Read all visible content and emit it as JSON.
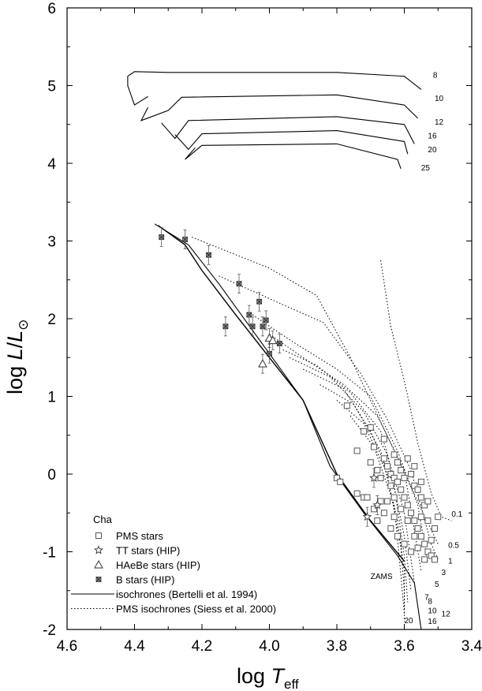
{
  "chart_data": {
    "type": "scatter",
    "xlabel": {
      "main": "log ",
      "var": "T",
      "sub": "eff"
    },
    "ylabel": {
      "main": "log ",
      "var": "L",
      "slash": "/",
      "var2": "L",
      "sun": "⊙"
    },
    "xlim": [
      4.6,
      3.4
    ],
    "ylim": [
      -2,
      6
    ],
    "x_reversed": true,
    "x_ticks": [
      "4.6",
      "4.4",
      "4.2",
      "4.0",
      "3.8",
      "3.6",
      "3.4"
    ],
    "x_tick_values": [
      4.6,
      4.4,
      4.2,
      4.0,
      3.8,
      3.6,
      3.4
    ],
    "y_ticks": [
      "-2",
      "-1",
      "0",
      "1",
      "2",
      "3",
      "4",
      "5",
      "6"
    ],
    "y_tick_values": [
      -2,
      -1,
      0,
      1,
      2,
      3,
      4,
      5,
      6
    ],
    "legend": {
      "title": "Cha",
      "entries": [
        {
          "marker": "square",
          "label": "PMS stars"
        },
        {
          "marker": "star",
          "label": "TT stars (HIP)"
        },
        {
          "marker": "triangle",
          "label": "HAeBe stars (HIP)"
        },
        {
          "marker": "xsquare",
          "label": "B stars (HIP)"
        },
        {
          "marker": "solid-line",
          "label": "isochrones (Bertelli et al. 1994)"
        },
        {
          "marker": "dotted-line",
          "label": "PMS isochrones (Siess et al. 2000)"
        }
      ]
    },
    "zams_label": "ZAMS",
    "zams": [
      [
        4.33,
        3.2
      ],
      [
        4.25,
        2.95
      ],
      [
        4.2,
        2.62
      ],
      [
        4.1,
        2.05
      ],
      [
        4.0,
        1.5
      ],
      [
        3.9,
        0.95
      ],
      [
        3.8,
        0.0
      ],
      [
        3.7,
        -0.6
      ],
      [
        3.6,
        -1.12
      ]
    ],
    "isochrones_post_ms": [
      {
        "label": "8",
        "points": [
          [
            4.34,
            3.22
          ],
          [
            4.24,
            2.95
          ],
          [
            4.15,
            2.45
          ],
          [
            4.0,
            1.55
          ],
          [
            3.9,
            0.95
          ],
          [
            3.82,
            0.1
          ],
          [
            3.72,
            -0.5
          ],
          [
            3.62,
            -1.05
          ],
          [
            3.57,
            -1.4
          ],
          [
            3.55,
            -2.0
          ]
        ]
      },
      {
        "label": "10",
        "label_xy": [
          3.53,
          4.87
        ],
        "points": [
          [
            4.36,
            4.86
          ],
          [
            4.4,
            4.75
          ],
          [
            4.42,
            5.0
          ],
          [
            4.42,
            5.12
          ],
          [
            4.4,
            5.18
          ],
          [
            4.3,
            5.17
          ],
          [
            3.8,
            5.17
          ],
          [
            3.6,
            5.12
          ],
          [
            3.55,
            4.95
          ]
        ]
      },
      {
        "label": "12",
        "points": [
          [
            4.36,
            4.72
          ],
          [
            4.38,
            4.55
          ],
          [
            4.3,
            4.68
          ],
          [
            4.26,
            4.85
          ],
          [
            3.8,
            4.88
          ],
          [
            3.6,
            4.75
          ],
          [
            3.56,
            4.58
          ]
        ]
      },
      {
        "label": "16",
        "points": [
          [
            4.32,
            4.52
          ],
          [
            4.28,
            4.32
          ],
          [
            4.24,
            4.55
          ],
          [
            3.8,
            4.6
          ],
          [
            3.6,
            4.5
          ],
          [
            3.57,
            4.25
          ]
        ]
      },
      {
        "label": "20",
        "points": [
          [
            4.28,
            4.37
          ],
          [
            4.24,
            4.18
          ],
          [
            4.2,
            4.38
          ],
          [
            3.8,
            4.42
          ],
          [
            3.6,
            4.28
          ],
          [
            3.59,
            4.12
          ]
        ]
      },
      {
        "label": "25",
        "points": [
          [
            4.22,
            4.2
          ],
          [
            4.25,
            4.05
          ],
          [
            4.2,
            4.23
          ],
          [
            3.8,
            4.25
          ],
          [
            3.62,
            4.05
          ],
          [
            3.61,
            3.93
          ]
        ]
      }
    ],
    "isochrones_pms": [
      {
        "label": "0.1",
        "points": [
          [
            3.67,
            2.75
          ],
          [
            3.64,
            1.9
          ],
          [
            3.6,
            1.2
          ],
          [
            3.56,
            0.4
          ],
          [
            3.52,
            -0.25
          ],
          [
            3.49,
            -0.55
          ],
          [
            3.46,
            -0.6
          ]
        ]
      },
      {
        "label": "0.5",
        "points": [
          [
            4.23,
            3.05
          ],
          [
            4.0,
            2.65
          ],
          [
            3.86,
            2.3
          ],
          [
            3.76,
            1.5
          ],
          [
            3.7,
            0.95
          ],
          [
            3.63,
            0.3
          ],
          [
            3.55,
            -0.45
          ],
          [
            3.5,
            -0.9
          ]
        ]
      },
      {
        "label": "1",
        "points": [
          [
            4.15,
            2.55
          ],
          [
            3.97,
            2.2
          ],
          [
            3.84,
            1.95
          ],
          [
            3.73,
            1.3
          ],
          [
            3.65,
            0.7
          ],
          [
            3.58,
            0.05
          ],
          [
            3.52,
            -0.9
          ],
          [
            3.5,
            -1.1
          ]
        ]
      },
      {
        "label": "3",
        "points": [
          [
            4.05,
            2.05
          ],
          [
            3.93,
            1.7
          ],
          [
            3.8,
            1.35
          ],
          [
            3.7,
            1.0
          ],
          [
            3.62,
            0.3
          ],
          [
            3.56,
            -0.4
          ],
          [
            3.53,
            -1.15
          ]
        ]
      },
      {
        "label": "5",
        "points": [
          [
            4.0,
            1.8
          ],
          [
            3.9,
            1.5
          ],
          [
            3.78,
            1.15
          ],
          [
            3.68,
            0.75
          ],
          [
            3.6,
            0.05
          ],
          [
            3.55,
            -1.25
          ]
        ]
      },
      {
        "label": "7",
        "points": [
          [
            3.96,
            1.6
          ],
          [
            3.86,
            1.4
          ],
          [
            3.76,
            1.05
          ],
          [
            3.67,
            0.55
          ],
          [
            3.6,
            -0.5
          ],
          [
            3.57,
            -1.4
          ]
        ]
      },
      {
        "label": "8",
        "points": [
          [
            3.94,
            1.5
          ],
          [
            3.82,
            1.25
          ],
          [
            3.72,
            0.8
          ],
          [
            3.65,
            0.25
          ],
          [
            3.6,
            -0.8
          ],
          [
            3.58,
            -1.5
          ]
        ]
      },
      {
        "label": "10",
        "points": [
          [
            3.9,
            1.35
          ],
          [
            3.78,
            1.1
          ],
          [
            3.7,
            0.55
          ],
          [
            3.63,
            -0.15
          ],
          [
            3.6,
            -1.05
          ],
          [
            3.59,
            -1.65
          ]
        ]
      },
      {
        "label": "12",
        "points": [
          [
            3.85,
            1.15
          ],
          [
            3.75,
            0.9
          ],
          [
            3.67,
            0.3
          ],
          [
            3.62,
            -0.6
          ],
          [
            3.6,
            -1.25
          ],
          [
            3.6,
            -1.75
          ]
        ]
      },
      {
        "label": "16",
        "points": [
          [
            3.8,
            0.95
          ],
          [
            3.72,
            0.65
          ],
          [
            3.65,
            0.0
          ],
          [
            3.61,
            -0.95
          ],
          [
            3.6,
            -1.5
          ],
          [
            3.6,
            -1.9
          ]
        ]
      },
      {
        "label": "20",
        "points": [
          [
            3.76,
            0.75
          ],
          [
            3.69,
            0.35
          ],
          [
            3.63,
            -0.4
          ],
          [
            3.61,
            -1.3
          ],
          [
            3.6,
            -1.8
          ]
        ]
      }
    ],
    "pms_label_positions": [
      {
        "label": "0.1",
        "x": 3.46,
        "y": -0.55
      },
      {
        "label": "0.5",
        "x": 3.47,
        "y": -0.95
      },
      {
        "label": "1",
        "x": 3.47,
        "y": -1.15
      },
      {
        "label": "3",
        "x": 3.49,
        "y": -1.3
      },
      {
        "label": "5",
        "x": 3.51,
        "y": -1.45
      },
      {
        "label": "7",
        "x": 3.54,
        "y": -1.62
      },
      {
        "label": "8",
        "x": 3.53,
        "y": -1.67
      },
      {
        "label": "10",
        "x": 3.53,
        "y": -1.79
      },
      {
        "label": "12",
        "x": 3.49,
        "y": -1.83
      },
      {
        "label": "16",
        "x": 3.53,
        "y": -1.93
      },
      {
        "label": "20",
        "x": 3.6,
        "y": -1.92
      }
    ],
    "post_ms_labels": [
      {
        "label": "8",
        "x": 3.515,
        "y": 5.1
      },
      {
        "label": "10",
        "x": 3.51,
        "y": 4.8
      },
      {
        "label": "12",
        "x": 3.51,
        "y": 4.5
      },
      {
        "label": "16",
        "x": 3.53,
        "y": 4.32
      },
      {
        "label": "20",
        "x": 3.53,
        "y": 4.14
      },
      {
        "label": "25",
        "x": 3.55,
        "y": 3.91
      }
    ],
    "series": [
      {
        "name": "PMS stars",
        "marker": "square",
        "points": [
          [
            3.77,
            0.88
          ],
          [
            3.7,
            0.6
          ],
          [
            3.69,
            0.35
          ],
          [
            3.66,
            0.2
          ],
          [
            3.65,
            0.1
          ],
          [
            3.64,
            0.0
          ],
          [
            3.63,
            -0.05
          ],
          [
            3.62,
            -0.1
          ],
          [
            3.61,
            -0.2
          ],
          [
            3.6,
            -0.3
          ],
          [
            3.59,
            -0.4
          ],
          [
            3.58,
            -0.5
          ],
          [
            3.57,
            -0.6
          ],
          [
            3.56,
            -0.7
          ],
          [
            3.55,
            -0.8
          ],
          [
            3.54,
            -0.9
          ],
          [
            3.53,
            -1.0
          ],
          [
            3.52,
            -1.05
          ],
          [
            3.51,
            -1.1
          ],
          [
            3.5,
            -0.55
          ],
          [
            3.55,
            -0.3
          ],
          [
            3.57,
            -0.15
          ],
          [
            3.6,
            -0.05
          ],
          [
            3.63,
            0.25
          ],
          [
            3.66,
            0.45
          ],
          [
            3.62,
            0.15
          ],
          [
            3.58,
            0.0
          ],
          [
            3.56,
            -0.2
          ],
          [
            3.54,
            -0.4
          ],
          [
            3.53,
            -0.6
          ],
          [
            3.55,
            -0.55
          ],
          [
            3.57,
            -0.8
          ],
          [
            3.59,
            -0.6
          ],
          [
            3.61,
            -0.45
          ],
          [
            3.63,
            -0.3
          ],
          [
            3.64,
            -0.15
          ],
          [
            3.65,
            -0.35
          ],
          [
            3.67,
            -0.05
          ],
          [
            3.68,
            0.05
          ],
          [
            3.7,
            0.15
          ],
          [
            3.72,
            0.55
          ],
          [
            3.74,
            0.3
          ],
          [
            3.8,
            -0.05
          ],
          [
            3.79,
            -0.1
          ],
          [
            3.74,
            -0.25
          ],
          [
            3.72,
            -0.3
          ],
          [
            3.68,
            -0.6
          ],
          [
            3.66,
            -0.5
          ],
          [
            3.64,
            -0.7
          ],
          [
            3.62,
            -0.8
          ],
          [
            3.6,
            -0.9
          ],
          [
            3.58,
            -1.0
          ],
          [
            3.56,
            -0.95
          ],
          [
            3.54,
            -1.1
          ],
          [
            3.52,
            -0.85
          ],
          [
            3.51,
            -0.7
          ],
          [
            3.53,
            -0.35
          ],
          [
            3.55,
            -0.1
          ],
          [
            3.57,
            0.1
          ],
          [
            3.59,
            0.2
          ],
          [
            3.61,
            0.05
          ],
          [
            3.63,
            -0.55
          ],
          [
            3.67,
            -0.35
          ],
          [
            3.69,
            -0.45
          ],
          [
            3.71,
            -0.3
          ]
        ]
      },
      {
        "name": "TT stars (HIP)",
        "marker": "star",
        "points": [
          [
            3.71,
            -0.55
          ],
          [
            3.68,
            -0.4
          ],
          [
            3.69,
            -0.05
          ]
        ]
      },
      {
        "name": "HAeBe stars (HIP)",
        "marker": "triangle",
        "points": [
          [
            4.02,
            1.42
          ],
          [
            4.0,
            1.75
          ],
          [
            3.99,
            1.72
          ]
        ]
      },
      {
        "name": "B stars (HIP)",
        "marker": "xsquare",
        "points": [
          [
            4.32,
            3.05
          ],
          [
            4.25,
            3.02
          ],
          [
            4.18,
            2.82
          ],
          [
            4.13,
            1.9
          ],
          [
            4.09,
            2.45
          ],
          [
            4.06,
            2.05
          ],
          [
            4.05,
            1.9
          ],
          [
            4.03,
            2.22
          ],
          [
            4.02,
            1.9
          ],
          [
            4.01,
            1.98
          ],
          [
            4.0,
            1.55
          ],
          [
            3.97,
            1.68
          ]
        ]
      }
    ]
  }
}
